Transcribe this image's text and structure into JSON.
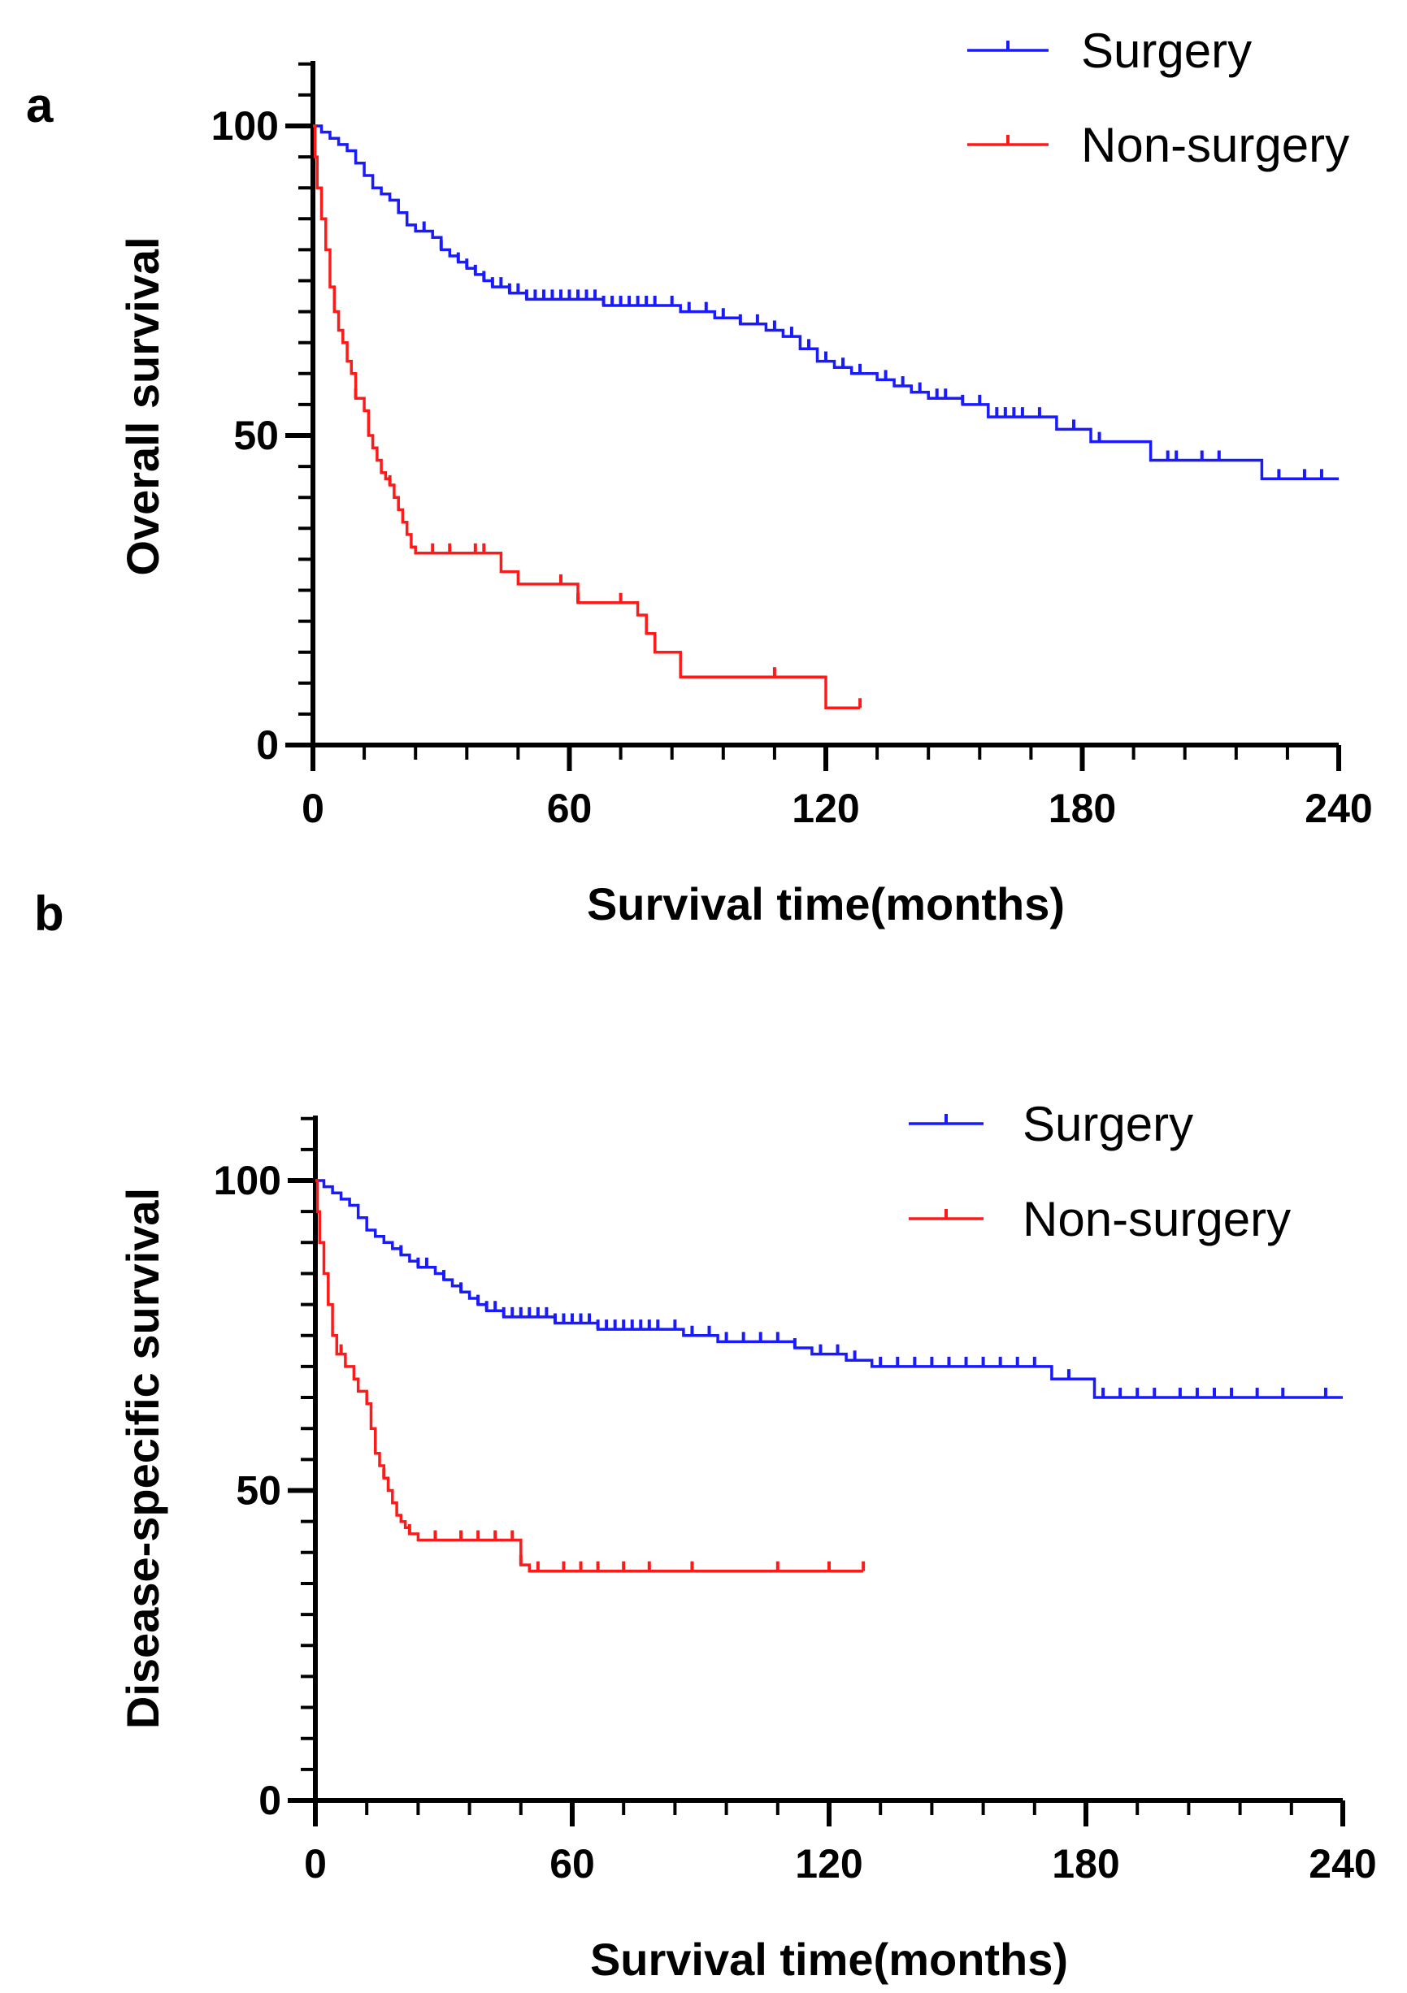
{
  "chart_data": [
    {
      "panel_label": "a",
      "type": "line",
      "subtype": "kaplan-meier step",
      "xlabel": "Survival time(months)",
      "ylabel": "Overall survival",
      "xlim": [
        0,
        240
      ],
      "ylim": [
        0,
        110
      ],
      "xticks": [
        0,
        60,
        120,
        180,
        240
      ],
      "xtick_labels": [
        "0",
        "60",
        "120",
        "180",
        "240"
      ],
      "yticks": [
        0,
        50,
        100
      ],
      "ytick_labels": [
        "0",
        "50",
        "100"
      ],
      "legend_position": "top-right",
      "series": [
        {
          "name": "Surgery",
          "color": "#1a1aff",
          "steps": [
            [
              0,
              100
            ],
            [
              2,
              99
            ],
            [
              4,
              98
            ],
            [
              6,
              97
            ],
            [
              8,
              96
            ],
            [
              10,
              94
            ],
            [
              12,
              92
            ],
            [
              14,
              90
            ],
            [
              16,
              89
            ],
            [
              18,
              88
            ],
            [
              20,
              86
            ],
            [
              22,
              84
            ],
            [
              24,
              83
            ],
            [
              28,
              82
            ],
            [
              30,
              80
            ],
            [
              32,
              79
            ],
            [
              34,
              78
            ],
            [
              36,
              77
            ],
            [
              38,
              76
            ],
            [
              40,
              75
            ],
            [
              42,
              74
            ],
            [
              46,
              73
            ],
            [
              50,
              72
            ],
            [
              58,
              72
            ],
            [
              68,
              71
            ],
            [
              78,
              71
            ],
            [
              86,
              70
            ],
            [
              94,
              69
            ],
            [
              100,
              68
            ],
            [
              106,
              67
            ],
            [
              110,
              66
            ],
            [
              114,
              64
            ],
            [
              118,
              62
            ],
            [
              122,
              61
            ],
            [
              126,
              60
            ],
            [
              132,
              59
            ],
            [
              136,
              58
            ],
            [
              140,
              57
            ],
            [
              144,
              56
            ],
            [
              152,
              55
            ],
            [
              158,
              53
            ],
            [
              170,
              53
            ],
            [
              174,
              51
            ],
            [
              182,
              49
            ],
            [
              196,
              46
            ],
            [
              222,
              43
            ],
            [
              240,
              43
            ]
          ],
          "censor_marks": [
            26,
            30,
            34,
            36,
            38,
            40,
            42,
            44,
            46,
            48,
            50,
            52,
            54,
            56,
            58,
            60,
            62,
            64,
            66,
            68,
            70,
            72,
            74,
            76,
            78,
            80,
            84,
            88,
            92,
            96,
            100,
            104,
            108,
            112,
            116,
            120,
            124,
            128,
            134,
            138,
            142,
            146,
            148,
            152,
            156,
            160,
            162,
            164,
            166,
            170,
            178,
            184,
            200,
            202,
            208,
            212,
            226,
            232,
            236
          ]
        },
        {
          "name": "Non-surgery",
          "color": "#ff1a1a",
          "steps": [
            [
              0,
              100
            ],
            [
              0.5,
              95
            ],
            [
              1,
              90
            ],
            [
              2,
              85
            ],
            [
              3,
              80
            ],
            [
              4,
              74
            ],
            [
              5,
              70
            ],
            [
              6,
              67
            ],
            [
              7,
              65
            ],
            [
              8,
              62
            ],
            [
              9,
              60
            ],
            [
              10,
              56
            ],
            [
              12,
              54
            ],
            [
              13,
              50
            ],
            [
              14,
              48
            ],
            [
              15,
              46
            ],
            [
              16,
              44
            ],
            [
              17,
              43
            ],
            [
              18,
              42
            ],
            [
              19,
              40
            ],
            [
              20,
              38
            ],
            [
              21,
              36
            ],
            [
              22,
              34
            ],
            [
              23,
              32
            ],
            [
              24,
              31
            ],
            [
              42,
              31
            ],
            [
              44,
              28
            ],
            [
              48,
              26
            ],
            [
              62,
              23
            ],
            [
              76,
              21
            ],
            [
              78,
              18
            ],
            [
              80,
              15
            ],
            [
              86,
              11
            ],
            [
              120,
              11
            ],
            [
              120,
              6
            ],
            [
              126,
              6
            ],
            [
              128,
              6
            ]
          ],
          "censor_marks": [
            10,
            18,
            28,
            32,
            38,
            40,
            58,
            62,
            72,
            108,
            128
          ]
        }
      ]
    },
    {
      "panel_label": "b",
      "type": "line",
      "subtype": "kaplan-meier step",
      "xlabel": "Survival time(months)",
      "ylabel": "Disease-specific survival",
      "xlim": [
        0,
        240
      ],
      "ylim": [
        0,
        110
      ],
      "xticks": [
        0,
        60,
        120,
        180,
        240
      ],
      "xtick_labels": [
        "0",
        "60",
        "120",
        "180",
        "240"
      ],
      "yticks": [
        0,
        50,
        100
      ],
      "ytick_labels": [
        "0",
        "50",
        "100"
      ],
      "legend_position": "top-right",
      "series": [
        {
          "name": "Surgery",
          "color": "#1a1aff",
          "steps": [
            [
              0,
              100
            ],
            [
              2,
              99
            ],
            [
              4,
              98
            ],
            [
              6,
              97
            ],
            [
              8,
              96
            ],
            [
              10,
              94
            ],
            [
              12,
              92
            ],
            [
              14,
              91
            ],
            [
              16,
              90
            ],
            [
              18,
              89
            ],
            [
              20,
              88
            ],
            [
              22,
              87
            ],
            [
              24,
              86
            ],
            [
              28,
              85
            ],
            [
              30,
              84
            ],
            [
              32,
              83
            ],
            [
              34,
              82
            ],
            [
              36,
              81
            ],
            [
              38,
              80
            ],
            [
              40,
              79
            ],
            [
              44,
              78
            ],
            [
              56,
              77
            ],
            [
              66,
              76
            ],
            [
              86,
              75
            ],
            [
              94,
              74
            ],
            [
              112,
              73
            ],
            [
              116,
              72
            ],
            [
              124,
              71
            ],
            [
              130,
              70
            ],
            [
              170,
              70
            ],
            [
              172,
              68
            ],
            [
              182,
              65
            ],
            [
              240,
              65
            ]
          ],
          "censor_marks": [
            20,
            24,
            26,
            30,
            34,
            38,
            40,
            42,
            44,
            46,
            48,
            50,
            52,
            54,
            56,
            58,
            60,
            62,
            64,
            66,
            68,
            70,
            72,
            74,
            76,
            78,
            80,
            84,
            88,
            92,
            96,
            100,
            104,
            108,
            112,
            118,
            122,
            126,
            132,
            136,
            140,
            144,
            148,
            152,
            156,
            160,
            164,
            168,
            176,
            184,
            188,
            192,
            196,
            202,
            206,
            210,
            214,
            220,
            226,
            236
          ]
        },
        {
          "name": "Non-surgery",
          "color": "#ff1a1a",
          "steps": [
            [
              0,
              100
            ],
            [
              0.5,
              95
            ],
            [
              1,
              90
            ],
            [
              2,
              85
            ],
            [
              3,
              80
            ],
            [
              4,
              75
            ],
            [
              5,
              72
            ],
            [
              7,
              70
            ],
            [
              9,
              68
            ],
            [
              10,
              66
            ],
            [
              12,
              64
            ],
            [
              13,
              60
            ],
            [
              14,
              56
            ],
            [
              15,
              54
            ],
            [
              16,
              52
            ],
            [
              17,
              50
            ],
            [
              18,
              48
            ],
            [
              19,
              46
            ],
            [
              20,
              45
            ],
            [
              21,
              44
            ],
            [
              22,
              43
            ],
            [
              24,
              42
            ],
            [
              46,
              42
            ],
            [
              48,
              38
            ],
            [
              50,
              37
            ],
            [
              128,
              37
            ]
          ],
          "censor_marks": [
            6,
            16,
            22,
            28,
            34,
            38,
            42,
            46,
            48,
            52,
            58,
            62,
            66,
            72,
            78,
            88,
            108,
            120,
            128
          ]
        }
      ]
    }
  ]
}
